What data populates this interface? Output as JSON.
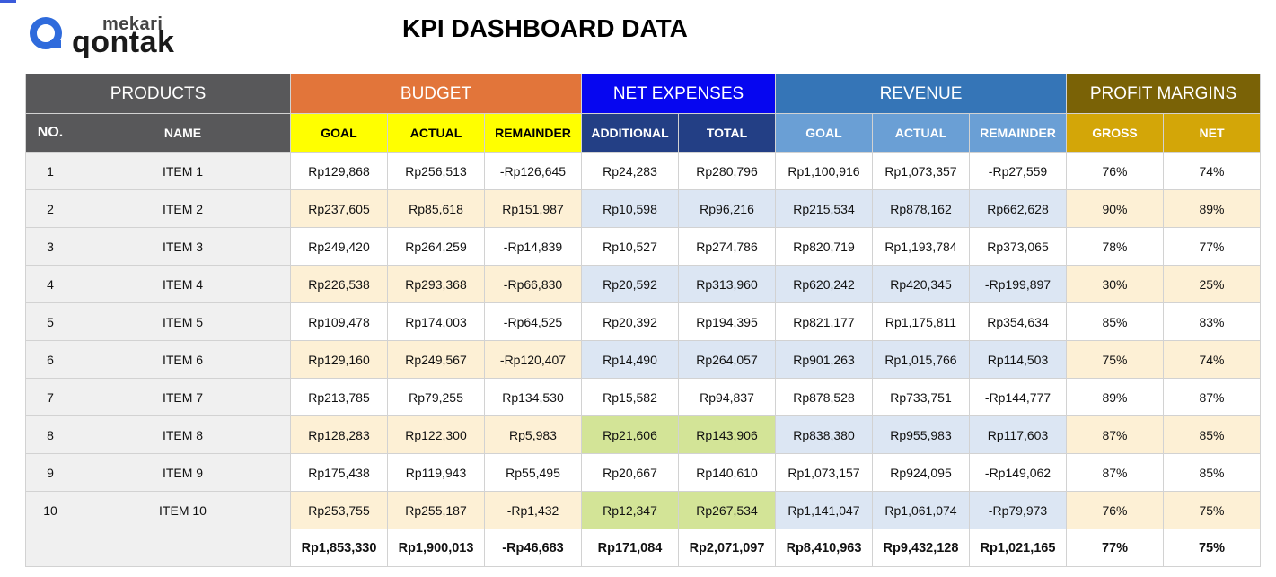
{
  "title": "KPI DASHBOARD DATA",
  "logo": {
    "small": "mekari",
    "big": "qontak"
  },
  "groups": {
    "products": "PRODUCTS",
    "budget": "BUDGET",
    "net_expenses": "NET EXPENSES",
    "revenue": "REVENUE",
    "profit_margins": "PROFIT MARGINS"
  },
  "columns": [
    "NO.",
    "NAME",
    "GOAL",
    "ACTUAL",
    "REMAINDER",
    "ADDITIONAL",
    "TOTAL",
    "GOAL",
    "ACTUAL",
    "REMAINDER",
    "GROSS",
    "NET"
  ],
  "rows": [
    [
      "1",
      "ITEM 1",
      "Rp129,868",
      "Rp256,513",
      "-Rp126,645",
      "Rp24,283",
      "Rp280,796",
      "Rp1,100,916",
      "Rp1,073,357",
      "-Rp27,559",
      "76%",
      "74%"
    ],
    [
      "2",
      "ITEM 2",
      "Rp237,605",
      "Rp85,618",
      "Rp151,987",
      "Rp10,598",
      "Rp96,216",
      "Rp215,534",
      "Rp878,162",
      "Rp662,628",
      "90%",
      "89%"
    ],
    [
      "3",
      "ITEM 3",
      "Rp249,420",
      "Rp264,259",
      "-Rp14,839",
      "Rp10,527",
      "Rp274,786",
      "Rp820,719",
      "Rp1,193,784",
      "Rp373,065",
      "78%",
      "77%"
    ],
    [
      "4",
      "ITEM 4",
      "Rp226,538",
      "Rp293,368",
      "-Rp66,830",
      "Rp20,592",
      "Rp313,960",
      "Rp620,242",
      "Rp420,345",
      "-Rp199,897",
      "30%",
      "25%"
    ],
    [
      "5",
      "ITEM 5",
      "Rp109,478",
      "Rp174,003",
      "-Rp64,525",
      "Rp20,392",
      "Rp194,395",
      "Rp821,177",
      "Rp1,175,811",
      "Rp354,634",
      "85%",
      "83%"
    ],
    [
      "6",
      "ITEM 6",
      "Rp129,160",
      "Rp249,567",
      "-Rp120,407",
      "Rp14,490",
      "Rp264,057",
      "Rp901,263",
      "Rp1,015,766",
      "Rp114,503",
      "75%",
      "74%"
    ],
    [
      "7",
      "ITEM 7",
      "Rp213,785",
      "Rp79,255",
      "Rp134,530",
      "Rp15,582",
      "Rp94,837",
      "Rp878,528",
      "Rp733,751",
      "-Rp144,777",
      "89%",
      "87%"
    ],
    [
      "8",
      "ITEM 8",
      "Rp128,283",
      "Rp122,300",
      "Rp5,983",
      "Rp21,606",
      "Rp143,906",
      "Rp838,380",
      "Rp955,983",
      "Rp117,603",
      "87%",
      "85%"
    ],
    [
      "9",
      "ITEM 9",
      "Rp175,438",
      "Rp119,943",
      "Rp55,495",
      "Rp20,667",
      "Rp140,610",
      "Rp1,073,157",
      "Rp924,095",
      "-Rp149,062",
      "87%",
      "85%"
    ],
    [
      "10",
      "ITEM 10",
      "Rp253,755",
      "Rp255,187",
      "-Rp1,432",
      "Rp12,347",
      "Rp267,534",
      "Rp1,141,047",
      "Rp1,061,074",
      "-Rp79,973",
      "76%",
      "75%"
    ]
  ],
  "totals": [
    "",
    "",
    "Rp1,853,330",
    "Rp1,900,013",
    "-Rp46,683",
    "Rp171,084",
    "Rp2,071,097",
    "Rp8,410,963",
    "Rp9,432,128",
    "Rp1,021,165",
    "77%",
    "75%"
  ],
  "highlight_green_rows": [
    8,
    10
  ],
  "colors": {
    "products": "#58585a",
    "budget": "#e2753a",
    "net_expenses": "#0606f0",
    "revenue": "#3575b7",
    "profit_margins": "#7a6206",
    "budget_header": "#ffff00",
    "net_header": "#233f85",
    "revenue_header": "#6a9fd5",
    "profit_header": "#d3a608",
    "alt_row": "#fdf0d5",
    "alt_row_blue": "#dce6f3",
    "highlight_green": "#d3e497"
  }
}
